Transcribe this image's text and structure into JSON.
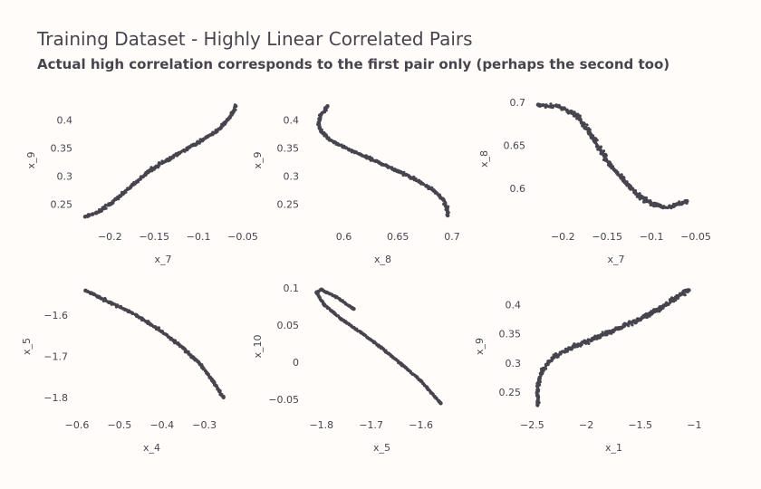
{
  "title": "Training Dataset - Highly Linear Correlated Pairs",
  "subtitle": "Actual high correlation corresponds to the first pair only (perhaps the second too)",
  "colors": {
    "background": "#fffcf9",
    "marker": "#46454e",
    "text": "#46454e"
  },
  "chart_data": [
    {
      "type": "scatter",
      "xlabel": "x_7",
      "ylabel": "x_9",
      "xlim": [
        -0.232,
        -0.048
      ],
      "ylim": [
        0.222,
        0.435
      ],
      "xticks": [
        -0.2,
        -0.15,
        -0.1,
        -0.05
      ],
      "xtick_labels": [
        "−0.2",
        "−0.15",
        "−0.1",
        "−0.05"
      ],
      "yticks": [
        0.25,
        0.3,
        0.35,
        0.4
      ],
      "ytick_labels": [
        "0.25",
        "0.3",
        "0.35",
        "0.4"
      ],
      "points": [
        [
          -0.228,
          0.228
        ],
        [
          -0.215,
          0.235
        ],
        [
          -0.2,
          0.25
        ],
        [
          -0.185,
          0.27
        ],
        [
          -0.17,
          0.29
        ],
        [
          -0.155,
          0.31
        ],
        [
          -0.14,
          0.325
        ],
        [
          -0.125,
          0.338
        ],
        [
          -0.11,
          0.352
        ],
        [
          -0.095,
          0.365
        ],
        [
          -0.08,
          0.38
        ],
        [
          -0.07,
          0.395
        ],
        [
          -0.062,
          0.412
        ],
        [
          -0.058,
          0.425
        ]
      ],
      "spread": [
        0.002,
        0.004
      ]
    },
    {
      "type": "scatter",
      "xlabel": "x_8",
      "ylabel": "x_9",
      "xlim": [
        0.567,
        0.705
      ],
      "ylim": [
        0.222,
        0.435
      ],
      "xticks": [
        0.6,
        0.65,
        0.7
      ],
      "xtick_labels": [
        "0.6",
        "0.65",
        "0.7"
      ],
      "yticks": [
        0.25,
        0.3,
        0.35,
        0.4
      ],
      "ytick_labels": [
        "0.25",
        "0.3",
        "0.35",
        "0.4"
      ],
      "points": [
        [
          0.585,
          0.425
        ],
        [
          0.579,
          0.41
        ],
        [
          0.577,
          0.395
        ],
        [
          0.579,
          0.38
        ],
        [
          0.585,
          0.368
        ],
        [
          0.6,
          0.352
        ],
        [
          0.62,
          0.335
        ],
        [
          0.64,
          0.318
        ],
        [
          0.655,
          0.305
        ],
        [
          0.67,
          0.29
        ],
        [
          0.683,
          0.275
        ],
        [
          0.692,
          0.258
        ],
        [
          0.695,
          0.245
        ],
        [
          0.696,
          0.23
        ]
      ],
      "spread": [
        0.002,
        0.003
      ]
    },
    {
      "type": "scatter",
      "xlabel": "x_7",
      "ylabel": "x_8",
      "xlim": [
        -0.232,
        -0.048
      ],
      "ylim": [
        0.563,
        0.705
      ],
      "xticks": [
        -0.2,
        -0.15,
        -0.1,
        -0.05
      ],
      "xtick_labels": [
        "−0.2",
        "−0.15",
        "−0.1",
        "−0.05"
      ],
      "yticks": [
        0.6,
        0.65,
        0.7
      ],
      "ytick_labels": [
        "0.6",
        "0.65",
        "0.7"
      ],
      "points": [
        [
          -0.228,
          0.697
        ],
        [
          -0.205,
          0.695
        ],
        [
          -0.185,
          0.685
        ],
        [
          -0.17,
          0.665
        ],
        [
          -0.158,
          0.645
        ],
        [
          -0.145,
          0.625
        ],
        [
          -0.13,
          0.607
        ],
        [
          -0.115,
          0.592
        ],
        [
          -0.1,
          0.582
        ],
        [
          -0.087,
          0.578
        ],
        [
          -0.075,
          0.579
        ],
        [
          -0.065,
          0.583
        ],
        [
          -0.06,
          0.585
        ]
      ],
      "spread": [
        0.004,
        0.003
      ]
    },
    {
      "type": "scatter",
      "xlabel": "x_4",
      "ylabel": "x_5",
      "xlim": [
        -0.6,
        -0.248
      ],
      "ylim": [
        -1.827,
        -1.525
      ],
      "xticks": [
        -0.6,
        -0.5,
        -0.4,
        -0.3
      ],
      "xtick_labels": [
        "−0.6",
        "−0.5",
        "−0.4",
        "−0.3"
      ],
      "yticks": [
        -1.8,
        -1.7,
        -1.6
      ],
      "ytick_labels": [
        "−1.8",
        "−1.7",
        "−1.6"
      ],
      "points": [
        [
          -0.58,
          -1.54
        ],
        [
          -0.52,
          -1.57
        ],
        [
          -0.46,
          -1.6
        ],
        [
          -0.4,
          -1.64
        ],
        [
          -0.35,
          -1.68
        ],
        [
          -0.31,
          -1.72
        ],
        [
          -0.28,
          -1.76
        ],
        [
          -0.265,
          -1.785
        ],
        [
          -0.255,
          -1.8
        ]
      ],
      "spread": [
        0.004,
        0.004
      ]
    },
    {
      "type": "scatter",
      "xlabel": "x_5",
      "ylabel": "x_10",
      "xlim": [
        -1.827,
        -1.53
      ],
      "ylim": [
        -0.062,
        0.105
      ],
      "xticks": [
        -1.8,
        -1.7,
        -1.6
      ],
      "xtick_labels": [
        "−1.8",
        "−1.7",
        "−1.6"
      ],
      "yticks": [
        -0.05,
        0,
        0.05,
        0.1
      ],
      "ytick_labels": [
        "−0.05",
        "0",
        "0.05",
        "0.1"
      ],
      "points": [
        [
          -1.735,
          0.072
        ],
        [
          -1.77,
          0.088
        ],
        [
          -1.8,
          0.098
        ],
        [
          -1.81,
          0.094
        ],
        [
          -1.795,
          0.078
        ],
        [
          -1.76,
          0.058
        ],
        [
          -1.72,
          0.04
        ],
        [
          -1.68,
          0.02
        ],
        [
          -1.64,
          -0.002
        ],
        [
          -1.6,
          -0.025
        ],
        [
          -1.56,
          -0.055
        ]
      ],
      "spread": [
        0.002,
        0.0015
      ]
    },
    {
      "type": "scatter",
      "xlabel": "x_1",
      "ylabel": "x_9",
      "xlim": [
        -2.52,
        -0.97
      ],
      "ylim": [
        0.222,
        0.435
      ],
      "xticks": [
        -2.5,
        -2,
        -1.5,
        -1
      ],
      "xtick_labels": [
        "−2.5",
        "−2",
        "−1.5",
        "−1"
      ],
      "yticks": [
        0.25,
        0.3,
        0.35,
        0.4
      ],
      "ytick_labels": [
        "0.25",
        "0.3",
        "0.35",
        "0.4"
      ],
      "points": [
        [
          -2.45,
          0.228
        ],
        [
          -2.45,
          0.26
        ],
        [
          -2.4,
          0.29
        ],
        [
          -2.3,
          0.31
        ],
        [
          -2.1,
          0.33
        ],
        [
          -1.9,
          0.345
        ],
        [
          -1.7,
          0.36
        ],
        [
          -1.5,
          0.375
        ],
        [
          -1.3,
          0.395
        ],
        [
          -1.15,
          0.415
        ],
        [
          -1.05,
          0.425
        ]
      ],
      "spread": [
        0.02,
        0.006
      ]
    }
  ]
}
